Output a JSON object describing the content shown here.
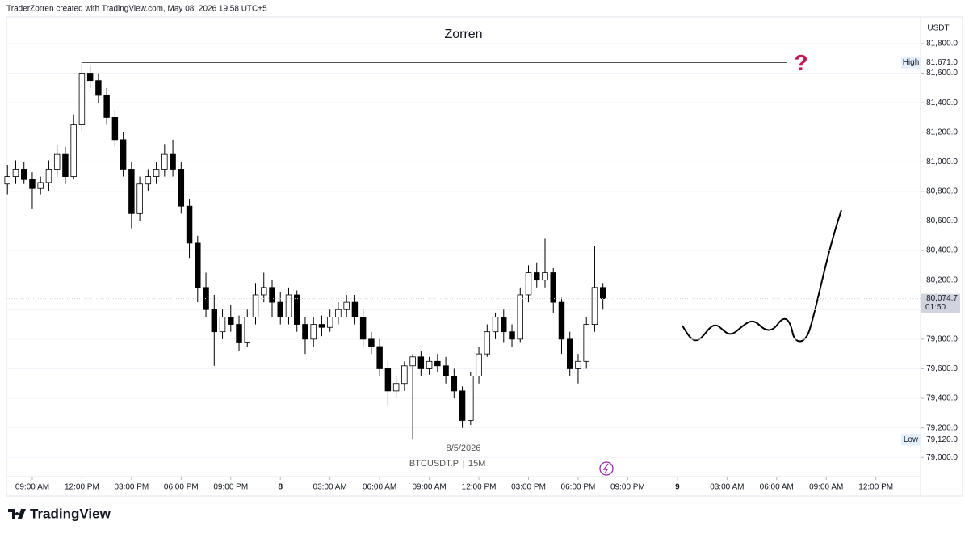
{
  "header": "TraderZorren created with TradingView.com, May 08, 2026 19:58 UTC+5",
  "footer": "TradingView",
  "chart_data": {
    "type": "candlestick",
    "title": "Zorren",
    "symbol": "BTCUSDT.P",
    "interval": "15M",
    "date_label": "8/5/2026",
    "currency": "USDT",
    "color_up": "#ffffff",
    "color_down": "#000000",
    "outline": "#000000",
    "x": [
      7.5,
      8,
      8.5,
      9,
      9.5,
      10,
      10.5,
      11,
      11.5,
      12,
      12.5,
      13,
      13.5,
      14,
      14.5,
      15,
      15.5,
      16,
      16.5,
      17,
      17.5,
      18,
      18.5,
      19,
      19.5,
      20,
      20.5,
      21,
      21.5,
      22,
      22.5,
      23,
      23.5,
      24,
      24.5,
      25,
      25.5,
      26,
      26.5,
      27,
      27.5,
      28,
      28.5,
      29,
      29.5,
      30,
      30.5,
      31,
      31.5,
      32,
      32.5,
      33,
      33.5,
      34,
      34.5,
      35,
      35.5,
      36,
      36.5,
      37,
      37.5,
      38,
      38.5,
      39,
      39.5,
      40,
      40.5,
      41,
      41.5,
      42,
      42.5,
      43,
      43.5
    ],
    "open": [
      80850,
      80900,
      80950,
      80880,
      80820,
      80860,
      80950,
      81050,
      80900,
      81250,
      81600,
      81550,
      81450,
      81300,
      81150,
      80950,
      80650,
      80850,
      80900,
      80950,
      81050,
      80950,
      80700,
      80450,
      80150,
      80000,
      79850,
      79950,
      79900,
      79780,
      79950,
      80100,
      80150,
      80050,
      79950,
      80100,
      79900,
      79800,
      79900,
      79880,
      79950,
      80000,
      80050,
      79950,
      79800,
      79750,
      79600,
      79450,
      79500,
      79620,
      79680,
      79600,
      79650,
      79620,
      79550,
      79450,
      79250,
      79550,
      79700,
      79850,
      79950,
      79850,
      79800,
      80100,
      80250,
      80200,
      80250,
      80050,
      79800,
      79600,
      79650,
      79900,
      80150
    ],
    "high": [
      80980,
      81010,
      81000,
      80930,
      80900,
      81010,
      81110,
      81100,
      81320,
      81671,
      81650,
      81600,
      81500,
      81350,
      81200,
      81000,
      80900,
      80950,
      81000,
      81120,
      81150,
      81000,
      80750,
      80500,
      80250,
      80100,
      80000,
      80030,
      79960,
      80000,
      80180,
      80250,
      80200,
      80120,
      80150,
      80130,
      79950,
      79950,
      79960,
      80000,
      80050,
      80100,
      80100,
      80000,
      79850,
      79800,
      79650,
      79550,
      79650,
      79700,
      79720,
      79680,
      79700,
      79680,
      79600,
      79480,
      79580,
      79750,
      79900,
      79980,
      80000,
      79900,
      80150,
      80300,
      80320,
      80480,
      80280,
      80080,
      79850,
      79700,
      79950,
      80430,
      80180
    ],
    "low": [
      80780,
      80850,
      80850,
      80680,
      80780,
      80800,
      80900,
      80850,
      80880,
      81200,
      81500,
      81400,
      81250,
      81100,
      80900,
      80550,
      80600,
      80800,
      80850,
      80900,
      80900,
      80650,
      80350,
      80050,
      79950,
      79620,
      79800,
      79850,
      79720,
      79750,
      79900,
      80050,
      79950,
      79900,
      79900,
      79850,
      79700,
      79750,
      79820,
      79850,
      79900,
      79950,
      79900,
      79750,
      79700,
      79550,
      79350,
      79400,
      79450,
      79120,
      79550,
      79560,
      79580,
      79500,
      79400,
      79200,
      79220,
      79500,
      79680,
      79800,
      79780,
      79750,
      79780,
      80050,
      80150,
      80150,
      79980,
      79700,
      79550,
      79500,
      79600,
      79850,
      80000
    ],
    "close": [
      80900,
      80950,
      80880,
      80820,
      80860,
      80950,
      81050,
      80900,
      81250,
      81600,
      81550,
      81450,
      81300,
      81150,
      80950,
      80650,
      80850,
      80900,
      80950,
      81050,
      80950,
      80700,
      80450,
      80150,
      80000,
      79850,
      79950,
      79900,
      79780,
      79950,
      80100,
      80150,
      80050,
      79950,
      80100,
      79900,
      79800,
      79900,
      79880,
      79950,
      80000,
      80050,
      79950,
      79800,
      79750,
      79600,
      79450,
      79500,
      79620,
      79680,
      79600,
      79650,
      79620,
      79550,
      79450,
      79250,
      79550,
      79700,
      79850,
      79950,
      79850,
      79800,
      80100,
      80250,
      80200,
      80250,
      80050,
      79800,
      79600,
      79650,
      79900,
      80150,
      80074.7
    ],
    "xlim": [
      7.44,
      62.7
    ],
    "xticks": [
      {
        "value": 9,
        "label": "09:00 AM"
      },
      {
        "value": 12,
        "label": "12:00 PM"
      },
      {
        "value": 15,
        "label": "03:00 PM"
      },
      {
        "value": 18,
        "label": "06:00 PM"
      },
      {
        "value": 21,
        "label": "09:00 PM"
      },
      {
        "value": 24,
        "label": "8"
      },
      {
        "value": 27,
        "label": "03:00 AM"
      },
      {
        "value": 30,
        "label": "06:00 AM"
      },
      {
        "value": 33,
        "label": "09:00 AM"
      },
      {
        "value": 36,
        "label": "12:00 PM"
      },
      {
        "value": 39,
        "label": "03:00 PM"
      },
      {
        "value": 42,
        "label": "06:00 PM"
      },
      {
        "value": 45,
        "label": "09:00 PM"
      },
      {
        "value": 48,
        "label": "9"
      },
      {
        "value": 51,
        "label": "03:00 AM"
      },
      {
        "value": 54,
        "label": "06:00 AM"
      },
      {
        "value": 57,
        "label": "09:00 AM"
      },
      {
        "value": 60,
        "label": "12:00 PM"
      }
    ],
    "ylim": [
      78870,
      81980
    ],
    "yticks": [
      {
        "value": 79000,
        "label": "79,000.0"
      },
      {
        "value": 79200,
        "label": "79,200.0"
      },
      {
        "value": 79400,
        "label": "79,400.0"
      },
      {
        "value": 79600,
        "label": "79,600.0"
      },
      {
        "value": 79800,
        "label": "79,800.0"
      },
      {
        "value": 80000,
        "label": "80,000.0"
      },
      {
        "value": 80200,
        "label": "80,200.0"
      },
      {
        "value": 80400,
        "label": "80,400.0"
      },
      {
        "value": 80600,
        "label": "80,600.0"
      },
      {
        "value": 80800,
        "label": "80,800.0"
      },
      {
        "value": 81000,
        "label": "81,000.0"
      },
      {
        "value": 81200,
        "label": "81,200.0"
      },
      {
        "value": 81400,
        "label": "81,400.0"
      },
      {
        "value": 81600,
        "label": "81,600.0"
      },
      {
        "value": 81800,
        "label": "81,800.0"
      }
    ],
    "high_marker": {
      "name": "High",
      "value": 81671.0,
      "label": "81,671.0"
    },
    "low_marker": {
      "name": "Low",
      "value": 79120.0,
      "label": "79,120.0"
    },
    "last_price": {
      "value": 80074.7,
      "label": "80,074.7",
      "countdown": "01:50"
    },
    "annotation": "?"
  }
}
